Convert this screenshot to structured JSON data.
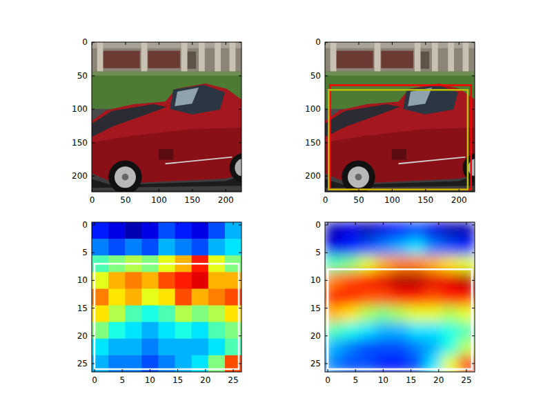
{
  "chart_data": [
    {
      "type": "image",
      "xlim": [
        -0.5,
        223.5
      ],
      "ylim": [
        223.5,
        -0.5
      ],
      "xticks": [
        0,
        50,
        100,
        150,
        200
      ],
      "yticks": [
        0,
        50,
        100,
        150,
        200
      ]
    },
    {
      "type": "image",
      "xlim": [
        -0.5,
        223.5
      ],
      "ylim": [
        223.5,
        -0.5
      ],
      "xticks": [
        0,
        50,
        100,
        150,
        200
      ],
      "yticks": [
        0,
        50,
        100,
        150,
        200
      ],
      "boxes": [
        {
          "color": "#ff0000",
          "x": [
            7,
            218
          ],
          "y": [
            64,
            220
          ]
        },
        {
          "color": "#bfbf00",
          "x": [
            5,
            213
          ],
          "y": [
            71,
            220
          ]
        }
      ]
    },
    {
      "type": "heatmap",
      "xlim": [
        -0.5,
        26.5
      ],
      "ylim": [
        26.5,
        -0.5
      ],
      "xticks": [
        0,
        5,
        10,
        15,
        20,
        25
      ],
      "yticks": [
        0,
        5,
        10,
        15,
        20,
        25
      ],
      "color": "jet",
      "cell_range": [
        0,
        1
      ],
      "cells": [
        [
          0.15,
          0.1,
          0.05,
          0.1,
          0.2,
          0.15,
          0.1,
          0.2,
          0.3
        ],
        [
          0.25,
          0.2,
          0.25,
          0.2,
          0.3,
          0.25,
          0.2,
          0.3,
          0.35
        ],
        [
          0.45,
          0.5,
          0.55,
          0.5,
          0.6,
          0.7,
          0.85,
          0.6,
          0.5
        ],
        [
          0.6,
          0.7,
          0.75,
          0.7,
          0.8,
          0.85,
          0.9,
          0.7,
          0.7
        ],
        [
          0.75,
          0.65,
          0.7,
          0.6,
          0.65,
          0.8,
          0.7,
          0.75,
          0.8
        ],
        [
          0.65,
          0.55,
          0.45,
          0.4,
          0.45,
          0.55,
          0.5,
          0.55,
          0.65
        ],
        [
          0.5,
          0.4,
          0.35,
          0.3,
          0.35,
          0.4,
          0.35,
          0.45,
          0.5
        ],
        [
          0.35,
          0.3,
          0.3,
          0.25,
          0.3,
          0.3,
          0.3,
          0.35,
          0.45
        ],
        [
          0.3,
          0.25,
          0.25,
          0.2,
          0.25,
          0.3,
          0.35,
          0.5,
          0.8
        ]
      ],
      "boxes": [
        {
          "color": "#ffffff",
          "x": [
            0,
            26
          ],
          "y": [
            7,
            26
          ]
        }
      ]
    },
    {
      "type": "heatmap",
      "xlim": [
        -0.5,
        26.5
      ],
      "ylim": [
        26.5,
        -0.5
      ],
      "xticks": [
        0,
        5,
        10,
        15,
        20,
        25
      ],
      "yticks": [
        0,
        5,
        10,
        15,
        20,
        25
      ],
      "color": "jet",
      "cell_range": [
        0,
        1
      ],
      "cells": [
        [
          0.05,
          0.1,
          0.05,
          0.1,
          0.15,
          0.2,
          0.1,
          0.05,
          0.05
        ],
        [
          0.1,
          0.15,
          0.2,
          0.25,
          0.3,
          0.35,
          0.25,
          0.2,
          0.15
        ],
        [
          0.45,
          0.5,
          0.6,
          0.7,
          0.75,
          0.75,
          0.7,
          0.65,
          0.6
        ],
        [
          0.75,
          0.8,
          0.85,
          0.9,
          0.95,
          0.95,
          0.9,
          0.9,
          0.95
        ],
        [
          0.85,
          0.85,
          0.8,
          0.8,
          0.85,
          0.85,
          0.8,
          0.85,
          0.85
        ],
        [
          0.7,
          0.65,
          0.55,
          0.5,
          0.55,
          0.6,
          0.6,
          0.55,
          0.6
        ],
        [
          0.45,
          0.4,
          0.35,
          0.3,
          0.3,
          0.35,
          0.35,
          0.4,
          0.45
        ],
        [
          0.3,
          0.25,
          0.2,
          0.2,
          0.2,
          0.25,
          0.3,
          0.4,
          0.55
        ],
        [
          0.25,
          0.2,
          0.2,
          0.15,
          0.15,
          0.2,
          0.35,
          0.6,
          0.85
        ]
      ],
      "boxes": [
        {
          "color": "#ffffff",
          "x": [
            0,
            26
          ],
          "y": [
            8,
            26
          ]
        }
      ]
    }
  ]
}
